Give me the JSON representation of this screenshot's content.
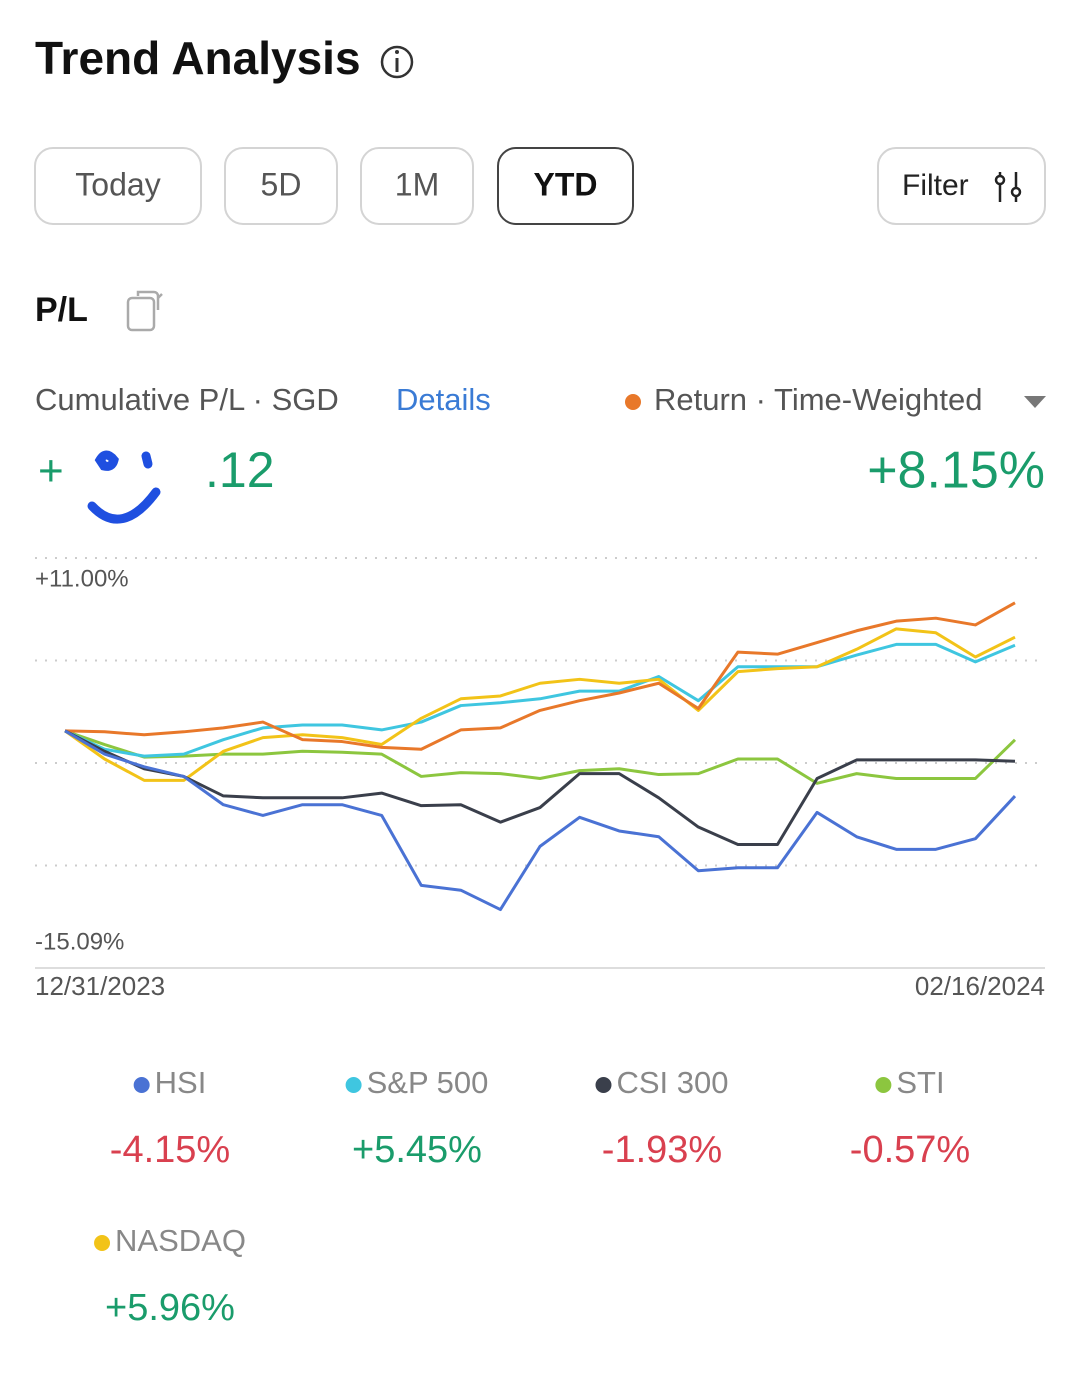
{
  "header": {
    "title": "Trend Analysis"
  },
  "tabs": [
    "Today",
    "5D",
    "1M",
    "YTD"
  ],
  "active_tab": 3,
  "filter": "Filter",
  "section": "P/L",
  "summary": {
    "label": "Cumulative P/L · SGD",
    "link": "Details",
    "pl_prefix": "+",
    "pl_suffix": ".12"
  },
  "chart_data": {
    "type": "line",
    "categories": [
      "12/31/2023",
      null,
      null,
      null,
      null,
      null,
      null,
      null,
      null,
      null,
      null,
      null,
      null,
      null,
      null,
      null,
      null,
      null,
      null,
      null,
      null,
      null,
      null,
      null,
      "02/16/2024"
    ],
    "ylim": [
      -15.09,
      11.0
    ],
    "yticks": [
      {
        "value": 11.0,
        "label": "+11.00%"
      },
      {
        "value": -15.09,
        "label": "-15.09%"
      }
    ],
    "grid": true,
    "series": [
      {
        "name": "Return · Time-Weighted",
        "color": "#e8782a",
        "change": 8.15,
        "change_label": "+8.15%",
        "values": [
          0,
          -0.06,
          -0.25,
          -0.06,
          0.19,
          0.56,
          -0.56,
          -0.68,
          -1.05,
          -1.17,
          0.06,
          0.19,
          1.3,
          1.92,
          2.41,
          3.03,
          1.42,
          5.01,
          4.88,
          5.62,
          6.37,
          6.98,
          7.17,
          6.74,
          8.15
        ]
      },
      {
        "name": "HSI",
        "color": "#4a72d4",
        "change": -4.15,
        "change_label": "-4.15%",
        "values": [
          0,
          -1.48,
          -2.29,
          -2.9,
          -4.7,
          -5.38,
          -4.7,
          -4.7,
          -5.38,
          -9.83,
          -10.14,
          -11.37,
          -7.35,
          -5.5,
          -6.37,
          -6.74,
          -8.9,
          -8.71,
          -8.71,
          -5.19,
          -6.74,
          -7.54,
          -7.54,
          -6.86,
          -4.15
        ]
      },
      {
        "name": "S&P 500",
        "color": "#3fc6e0",
        "change": 5.45,
        "change_label": "+5.45%",
        "values": [
          0,
          -1.17,
          -1.61,
          -1.48,
          -0.56,
          0.19,
          0.37,
          0.37,
          0.06,
          0.56,
          1.61,
          1.79,
          2.04,
          2.53,
          2.53,
          3.46,
          1.92,
          4.08,
          4.08,
          4.08,
          4.82,
          5.5,
          5.5,
          4.39,
          5.45
        ]
      },
      {
        "name": "CSI 300",
        "color": "#3a3f4b",
        "change": -1.93,
        "change_label": "-1.93%",
        "values": [
          0,
          -1.3,
          -2.41,
          -2.9,
          -4.14,
          -4.26,
          -4.26,
          -4.26,
          -3.96,
          -4.76,
          -4.7,
          -5.81,
          -4.88,
          -2.72,
          -2.72,
          -4.26,
          -6.12,
          -7.23,
          -7.23,
          -3.03,
          -1.85,
          -1.85,
          -1.85,
          -1.85,
          -1.93
        ]
      },
      {
        "name": "STI",
        "color": "#8cc63f",
        "change": -0.57,
        "change_label": "-0.57%",
        "values": [
          0,
          -0.87,
          -1.67,
          -1.61,
          -1.48,
          -1.48,
          -1.3,
          -1.36,
          -1.48,
          -2.9,
          -2.66,
          -2.72,
          -3.03,
          -2.53,
          -2.41,
          -2.78,
          -2.72,
          -1.79,
          -1.79,
          -3.34,
          -2.72,
          -3.03,
          -3.03,
          -3.03,
          -0.57
        ]
      },
      {
        "name": "NASDAQ",
        "color": "#f2c318",
        "change": 5.96,
        "change_label": "+5.96%",
        "values": [
          0,
          -1.79,
          -3.15,
          -3.15,
          -1.3,
          -0.43,
          -0.25,
          -0.43,
          -0.87,
          0.8,
          2.04,
          2.22,
          3.03,
          3.28,
          3.03,
          3.28,
          1.3,
          3.77,
          3.96,
          4.08,
          5.19,
          6.49,
          6.24,
          4.7,
          5.96
        ]
      }
    ]
  }
}
